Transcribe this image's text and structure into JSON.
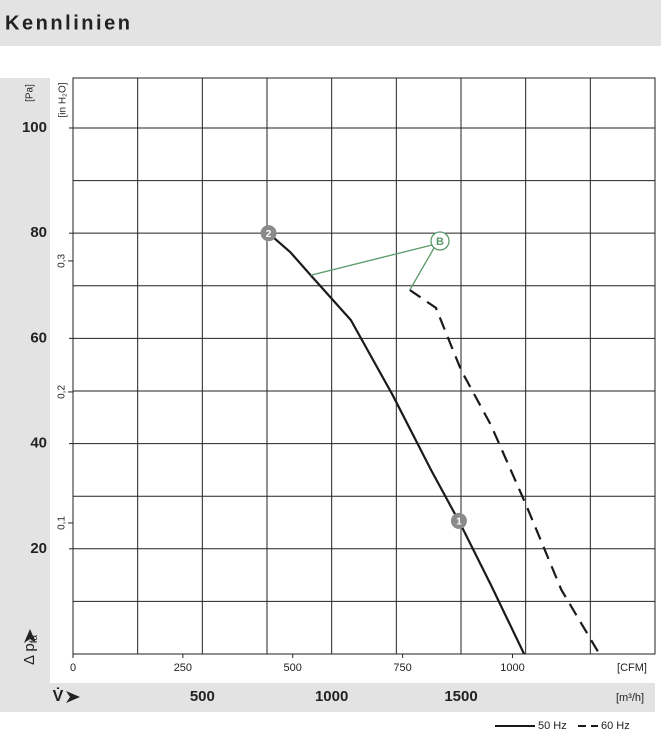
{
  "header": {
    "title": "Kennlinien"
  },
  "chart_data": {
    "type": "line",
    "x_label": "[m³/h]",
    "x_symbol": "V̇",
    "x2_label": "[CFM]",
    "y_label": {
      "symbol": "Δ p",
      "subscript": "fa"
    },
    "y_unit": "[Pa]",
    "y2_label": "[in H₂O]",
    "xlim": [
      0,
      2250
    ],
    "xticks": [
      500,
      1000,
      1500
    ],
    "xgrid": [
      250,
      500,
      750,
      1000,
      1250,
      1500,
      1750,
      2000
    ],
    "x2lim": [
      0,
      1324.3
    ],
    "x2ticks": [
      0,
      250,
      500,
      750,
      1000
    ],
    "ylim": [
      0,
      109.5
    ],
    "yticks": [
      20,
      40,
      60,
      80,
      100
    ],
    "ygrid": [
      10,
      20,
      30,
      40,
      50,
      60,
      70,
      80,
      90,
      100
    ],
    "y2lim": [
      0,
      0.4396
    ],
    "y2ticks": [
      {
        "value": 0.1,
        "label": "0,1"
      },
      {
        "value": 0.2,
        "label": "0,2"
      },
      {
        "value": 0.3,
        "label": "0,3"
      }
    ],
    "series": [
      {
        "name": "50 Hz",
        "color": "#1a1a1a",
        "dashed": false,
        "x": [
          756,
          840,
          919,
          1074,
          1236,
          1384,
          1500,
          1616,
          1744
        ],
        "values": [
          80,
          76.4,
          72,
          63.5,
          49.2,
          35,
          24.5,
          13.1,
          0
        ]
      },
      {
        "name": "60 Hz",
        "color": "#1a1a1a",
        "dashed": true,
        "x": [
          1302,
          1403,
          1500,
          1616,
          1752,
          1888,
          2035
        ],
        "values": [
          69.2,
          65.8,
          54,
          43.5,
          28.3,
          12.2,
          0
        ]
      }
    ],
    "markers": [
      {
        "label": "2",
        "x": 756,
        "y": 80
      },
      {
        "label": "1",
        "x": 1492,
        "y": 25.3
      }
    ],
    "annotation": {
      "text": "B",
      "color": "#5a9a6a"
    }
  }
}
